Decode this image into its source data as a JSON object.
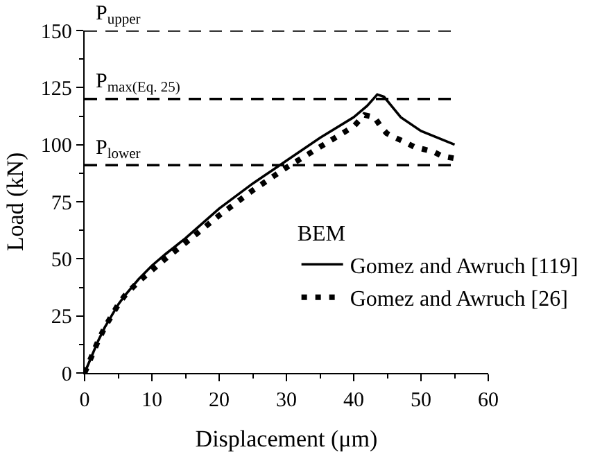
{
  "chart_data": {
    "type": "line",
    "xlabel": "Displacement (μm)",
    "ylabel": "Load (kN)",
    "legend_title": "BEM",
    "xlim": [
      0,
      60
    ],
    "ylim": [
      0,
      150
    ],
    "xticks": [
      0,
      10,
      20,
      30,
      40,
      50,
      60
    ],
    "yticks": [
      0,
      25,
      50,
      75,
      100,
      125,
      150
    ],
    "grid": false,
    "legend": "right",
    "x": [
      0,
      1,
      2,
      3,
      4,
      5,
      6,
      8,
      10,
      12,
      15,
      20,
      25,
      28,
      30,
      35,
      40,
      42,
      43.5,
      44.5,
      47,
      50,
      55
    ],
    "series": [
      {
        "name": "Gomez and Awruch [119]",
        "color": "#000000",
        "line_style": "solid",
        "values": [
          0,
          7,
          14,
          20,
          25,
          30,
          34,
          41,
          47,
          52,
          59,
          72,
          83,
          89,
          93,
          103,
          112,
          117,
          122,
          121,
          112,
          106,
          100
        ]
      },
      {
        "name": "Gomez and Awruch [26]",
        "color": "#000000",
        "line_style": "dotted",
        "x": [
          0,
          1,
          2,
          3,
          4,
          5,
          6,
          8,
          10,
          12,
          15,
          20,
          25,
          28,
          30,
          35,
          40,
          41.6,
          43.1,
          44,
          44.9,
          46.2,
          47.7,
          49,
          50.4,
          51.8,
          53.1,
          55
        ],
        "values": [
          0,
          7,
          14,
          20,
          25,
          30,
          34,
          40,
          45,
          50,
          57,
          69,
          80,
          86,
          90,
          99,
          108,
          113,
          112,
          108,
          105,
          103,
          101,
          99,
          98,
          97,
          95,
          94
        ]
      }
    ],
    "ref_lines": [
      {
        "axis": "y",
        "value": 150,
        "label": "P$_{upper}$",
        "line_style": "dashed",
        "color": "#000000"
      },
      {
        "axis": "y",
        "value": 120,
        "label": "P$_{max(Eq. 25)}$",
        "line_style": "dashed",
        "color": "#000000"
      },
      {
        "axis": "y",
        "value": 91,
        "label": "P$_{lower}$",
        "line_style": "dashed",
        "color": "#000000"
      }
    ]
  }
}
